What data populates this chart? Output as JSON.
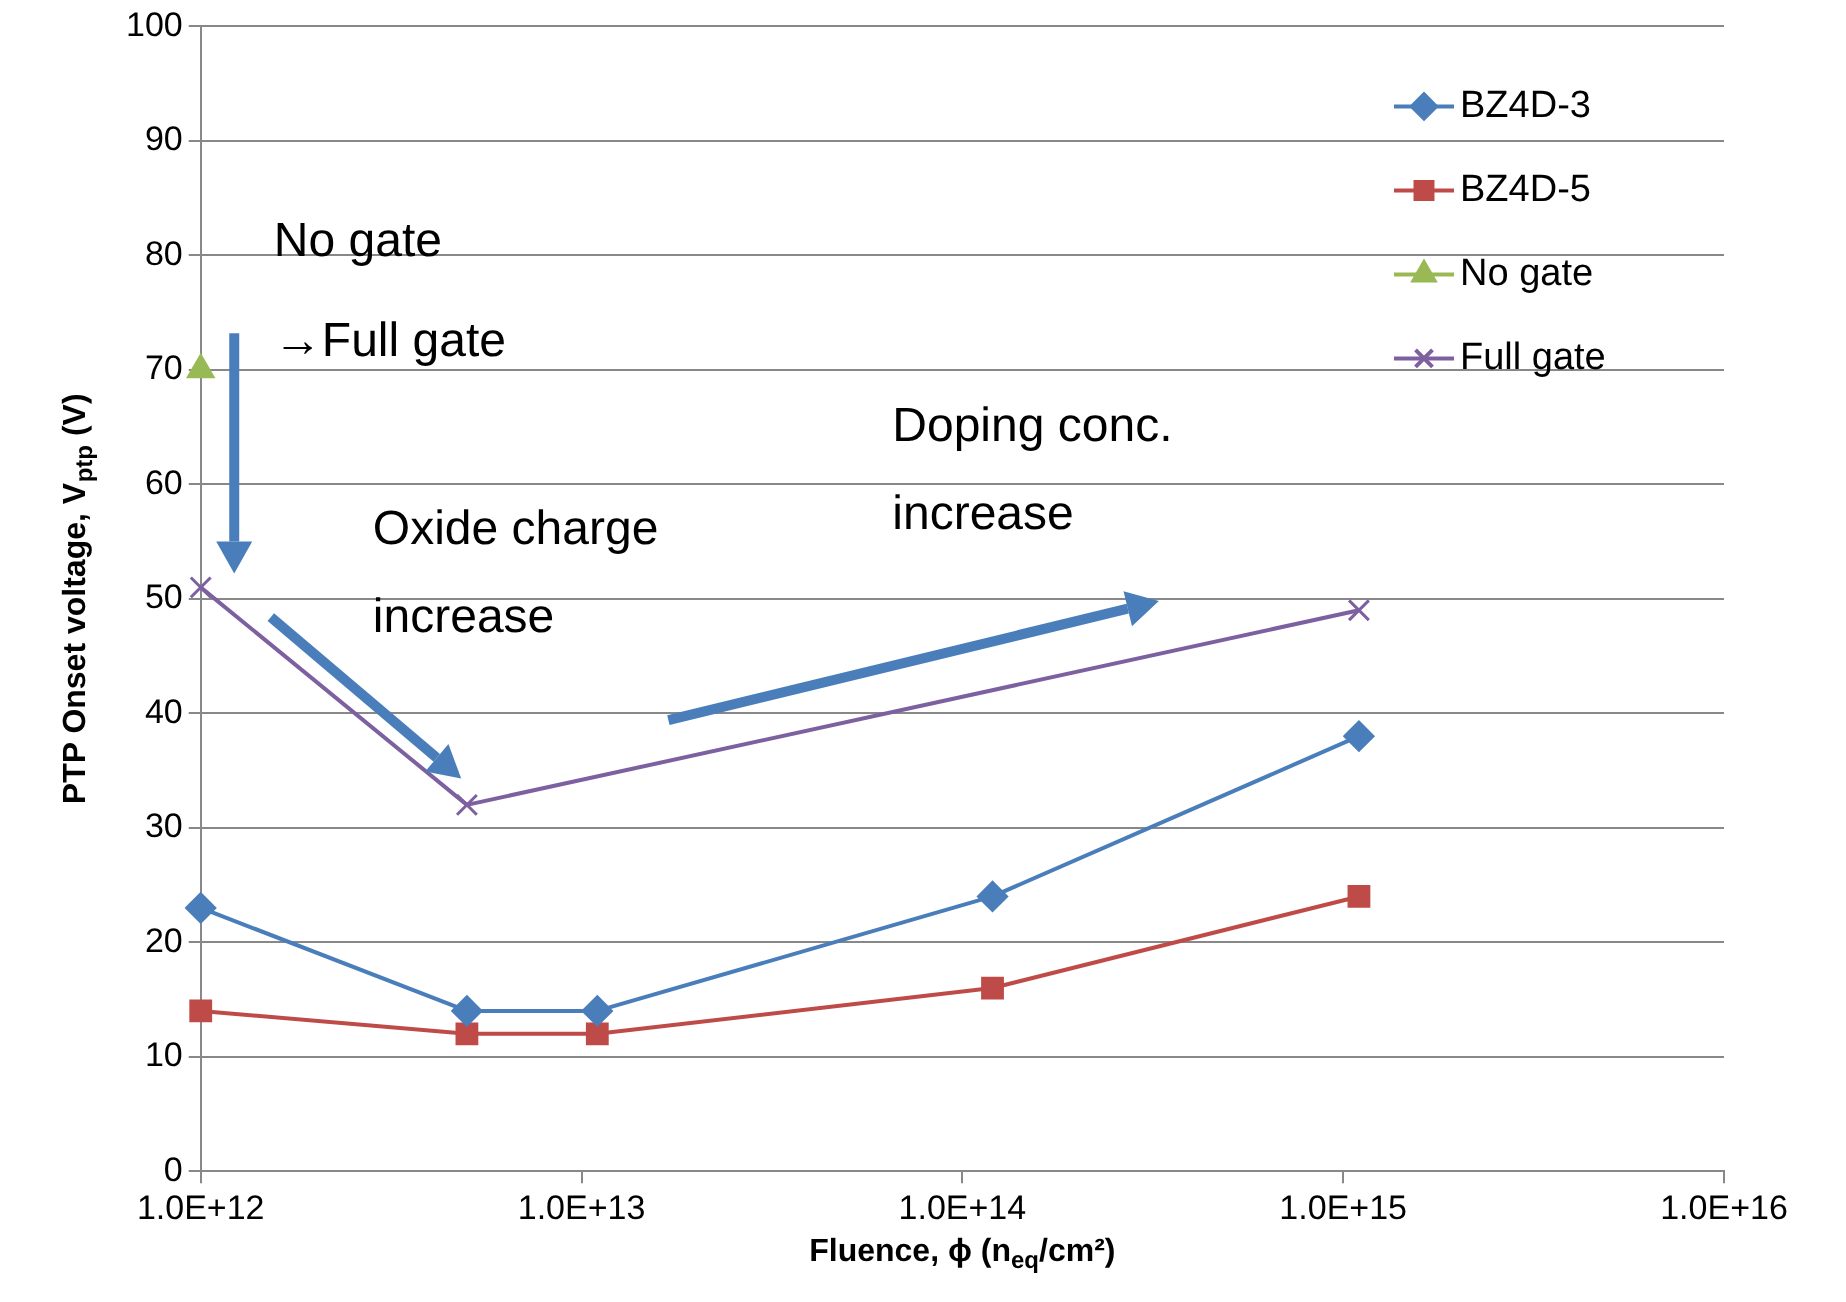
{
  "chart_data": {
    "type": "line",
    "xlabel": "Fluence, ϕ (n$_{eq}$/cm²)",
    "ylabel": "PTP Onset voltage, V$_{ptp}$ (V)",
    "log": "x",
    "xlim": [
      1000000000000.0,
      1e+16
    ],
    "xticks": [
      {
        "value": 1000000000000.0,
        "label": "1.0E+12"
      },
      {
        "value": 10000000000000.0,
        "label": "1.0E+13"
      },
      {
        "value": 100000000000000.0,
        "label": "1.0E+14"
      },
      {
        "value": 1000000000000000.0,
        "label": "1.0E+15"
      },
      {
        "value": 1e+16,
        "label": "1.0E+16"
      }
    ],
    "ylim": [
      0,
      100
    ],
    "yticks": [
      0,
      10,
      20,
      30,
      40,
      50,
      60,
      70,
      80,
      90,
      100
    ],
    "grid": "y",
    "legend": "top right",
    "line_style": "solid",
    "series": [
      {
        "name": "BZ4D-3",
        "color": "#4a7ebb",
        "marker": "diamond",
        "x": [
          1000000000000.0,
          5000000000000.0,
          11000000000000.0,
          120000000000000.0,
          1100000000000000.0
        ],
        "values": [
          23,
          14,
          14,
          24,
          38
        ]
      },
      {
        "name": "BZ4D-5",
        "color": "#be4b48",
        "marker": "square",
        "x": [
          1000000000000.0,
          5000000000000.0,
          11000000000000.0,
          120000000000000.0,
          1100000000000000.0
        ],
        "values": [
          14,
          12,
          12,
          16,
          24
        ]
      },
      {
        "name": "No gate",
        "color": "#98b954",
        "marker": "triangle",
        "x": [
          1000000000000.0
        ],
        "values": [
          70
        ]
      },
      {
        "name": "Full gate",
        "color": "#7d60a0",
        "marker": "cross",
        "x": [
          1000000000000.0,
          5000000000000.0,
          1100000000000000.0
        ],
        "values": [
          51,
          32,
          49
        ]
      }
    ],
    "annotations": [
      "No gate\n→Full gate",
      "Oxide charge\nincrease",
      "Doping conc.\nincrease"
    ]
  }
}
